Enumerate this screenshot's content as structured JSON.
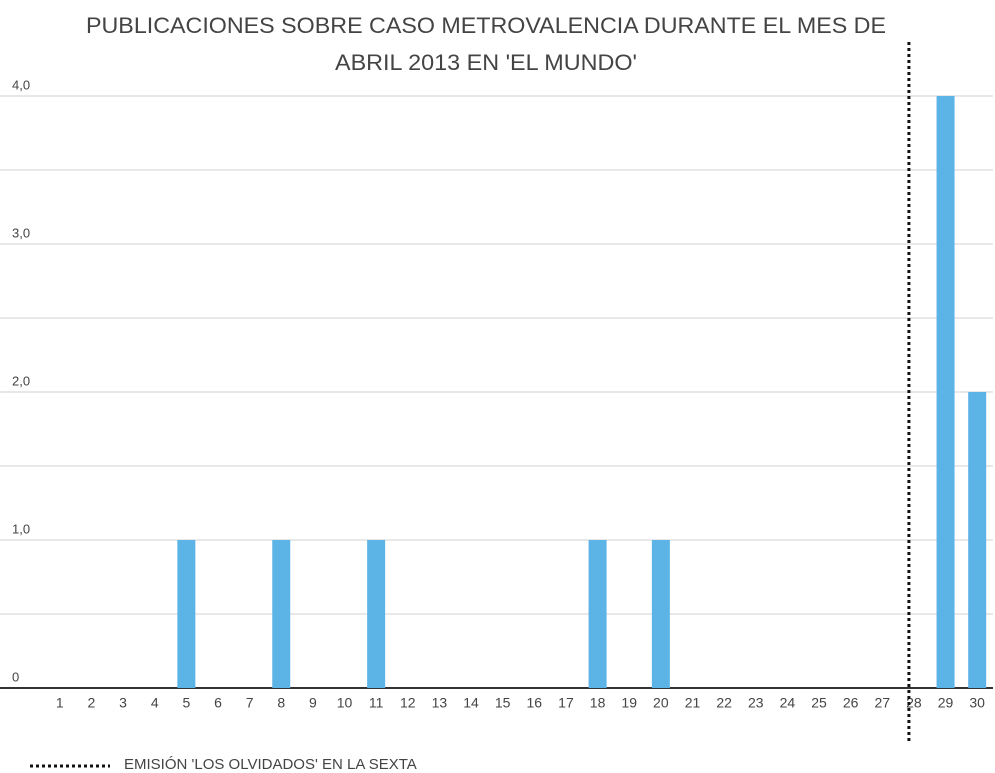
{
  "chart_data": {
    "type": "bar",
    "title": [
      "PUBLICACIONES SOBRE CASO METROVALENCIA DURANTE EL MES DE",
      "ABRIL 2013 EN 'EL MUNDO'"
    ],
    "categories": [
      "1",
      "2",
      "3",
      "4",
      "5",
      "6",
      "7",
      "8",
      "9",
      "10",
      "11",
      "12",
      "13",
      "14",
      "15",
      "16",
      "17",
      "18",
      "19",
      "20",
      "21",
      "22",
      "23",
      "24",
      "25",
      "26",
      "27",
      "28",
      "29",
      "30"
    ],
    "values": [
      0,
      0,
      0,
      0,
      1,
      0,
      0,
      1,
      0,
      0,
      1,
      0,
      0,
      0,
      0,
      0,
      0,
      1,
      0,
      1,
      0,
      0,
      0,
      0,
      0,
      0,
      0,
      0,
      4,
      2
    ],
    "color": "#5cb3e6",
    "ylim": [
      0,
      4
    ],
    "yticks": [
      0,
      {
        "value": 1,
        "label": "1,0"
      },
      {
        "value": 2,
        "label": "2,0"
      },
      {
        "value": 3,
        "label": "3,0"
      },
      {
        "value": 4,
        "label": "4,0"
      }
    ],
    "yminor": [
      0.5,
      1.5,
      2.5,
      3.5
    ],
    "grid": true,
    "event_line": {
      "category": 27,
      "label": "EMISIÓN 'LOS OLVIDADOS' EN LA SEXTA"
    }
  }
}
